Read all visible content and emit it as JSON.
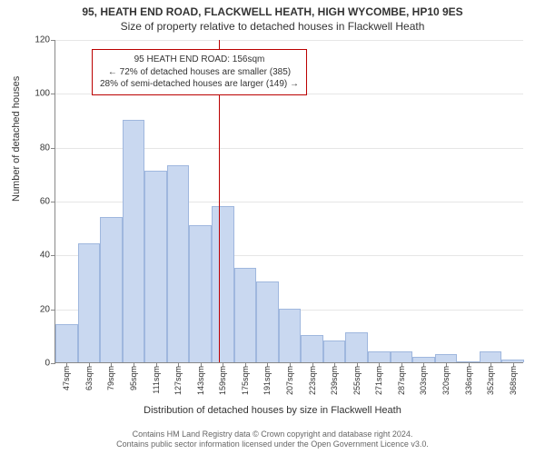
{
  "titles": {
    "main": "95, HEATH END ROAD, FLACKWELL HEATH, HIGH WYCOMBE, HP10 9ES",
    "sub": "Size of property relative to detached houses in Flackwell Heath"
  },
  "chart": {
    "type": "histogram",
    "ylabel": "Number of detached houses",
    "xlabel": "Distribution of detached houses by size in Flackwell Heath",
    "ylim": [
      0,
      120
    ],
    "ytick_step": 20,
    "background_color": "#ffffff",
    "grid_color": "#e6e6e6",
    "axis_color": "#888888",
    "bar_fill": "#c9d8f0",
    "bar_stroke": "#9fb7de",
    "bar_width_ratio": 1.0,
    "tick_fontsize": 10,
    "xtick_fontsize": 9,
    "label_fontsize": 11,
    "title_fontsize": 12,
    "categories": [
      "47sqm",
      "63sqm",
      "79sqm",
      "95sqm",
      "111sqm",
      "127sqm",
      "143sqm",
      "159sqm",
      "175sqm",
      "191sqm",
      "207sqm",
      "223sqm",
      "239sqm",
      "255sqm",
      "271sqm",
      "287sqm",
      "303sqm",
      "320sqm",
      "336sqm",
      "352sqm",
      "368sqm"
    ],
    "values": [
      14,
      44,
      54,
      90,
      71,
      73,
      51,
      58,
      35,
      30,
      20,
      10,
      8,
      11,
      4,
      4,
      2,
      3,
      0,
      4,
      1
    ],
    "marker": {
      "position_sqm": 156,
      "color": "#bb0000"
    },
    "annotation": {
      "lines": [
        "95 HEATH END ROAD: 156sqm",
        "← 72% of detached houses are smaller (385)",
        "28% of semi-detached houses are larger (149) →"
      ],
      "border_color": "#bb0000",
      "bg_color": "#ffffff",
      "fontsize": 10
    }
  },
  "footer": {
    "line1": "Contains HM Land Registry data © Crown copyright and database right 2024.",
    "line2": "Contains public sector information licensed under the Open Government Licence v3.0."
  }
}
